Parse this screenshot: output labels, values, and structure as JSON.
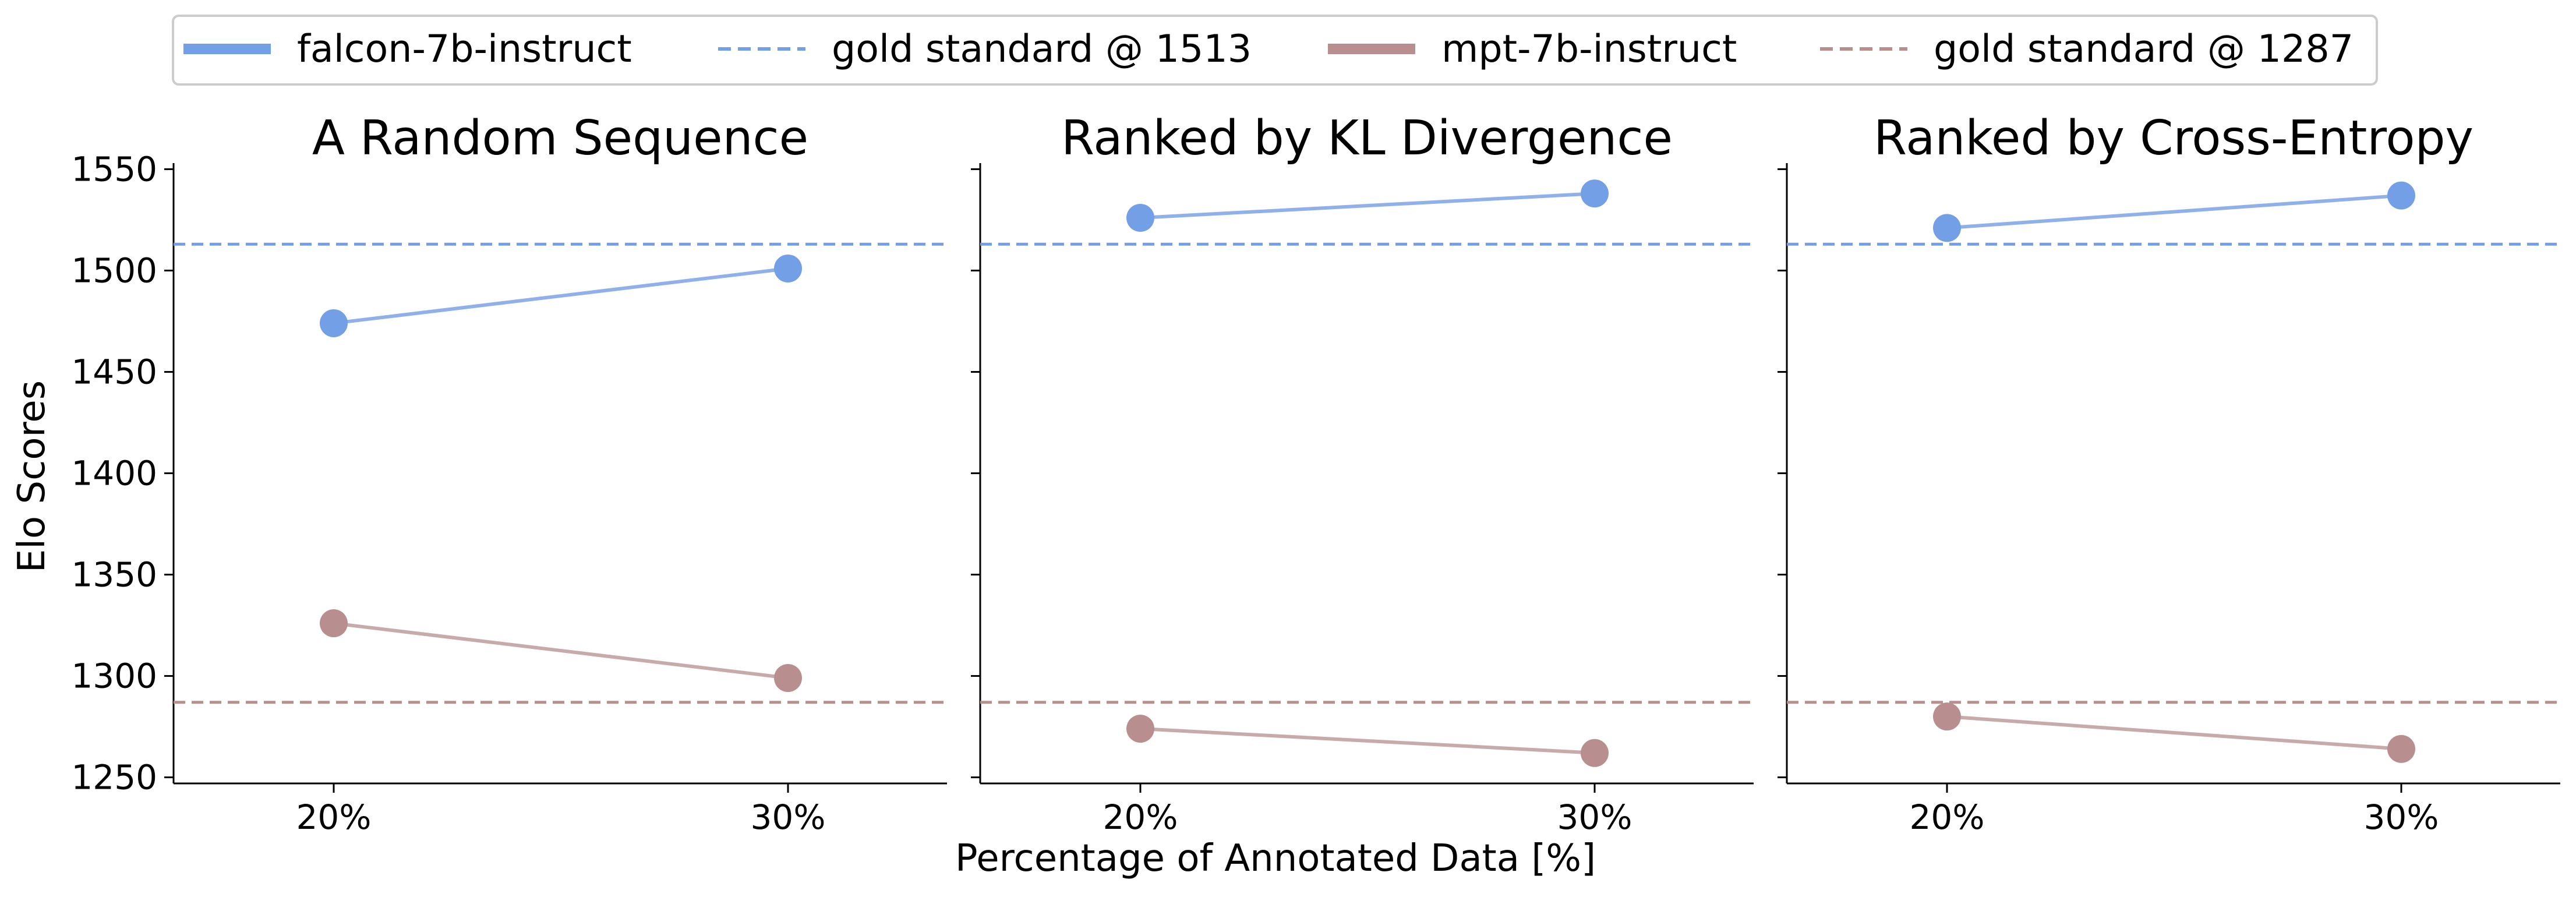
{
  "chart_data": {
    "type": "line",
    "legend": {
      "placement": "top-center",
      "entries": [
        {
          "label": "falcon-7b-instruct",
          "style": "solid",
          "color": "#729fe6"
        },
        {
          "label": "gold standard @ 1513",
          "style": "dashed",
          "color": "#729fe6"
        },
        {
          "label": "mpt-7b-instruct",
          "style": "solid",
          "color": "#b88f8e"
        },
        {
          "label": "gold standard @ 1287",
          "style": "dashed",
          "color": "#b88f8e"
        }
      ]
    },
    "ylabel": "Elo Scores",
    "xlabel": "Percentage of Annotated Data [%]",
    "ylim": [
      1247,
      1553
    ],
    "yticks": [
      1250,
      1300,
      1350,
      1400,
      1450,
      1500,
      1550
    ],
    "categories": [
      "20%",
      "30%"
    ],
    "grid": false,
    "colors": {
      "falcon_marker": "#729fe6",
      "falcon_line": "#8fb0e8",
      "mpt_marker": "#b88f8e",
      "mpt_line": "#c9aaab"
    },
    "gold_standards": [
      {
        "value": 1513,
        "color": "#729fe6"
      },
      {
        "value": 1287,
        "color": "#b88f8e"
      }
    ],
    "panels": [
      {
        "title": "A Random Sequence",
        "series": [
          {
            "name": "falcon-7b-instruct",
            "values": [
              1474,
              1501
            ]
          },
          {
            "name": "mpt-7b-instruct",
            "values": [
              1326,
              1299
            ]
          }
        ]
      },
      {
        "title": "Ranked by KL Divergence",
        "series": [
          {
            "name": "falcon-7b-instruct",
            "values": [
              1526,
              1538
            ]
          },
          {
            "name": "mpt-7b-instruct",
            "values": [
              1274,
              1262
            ]
          }
        ]
      },
      {
        "title": "Ranked by Cross-Entropy",
        "series": [
          {
            "name": "falcon-7b-instruct",
            "values": [
              1521,
              1537
            ]
          },
          {
            "name": "mpt-7b-instruct",
            "values": [
              1280,
              1264
            ]
          }
        ]
      }
    ]
  }
}
